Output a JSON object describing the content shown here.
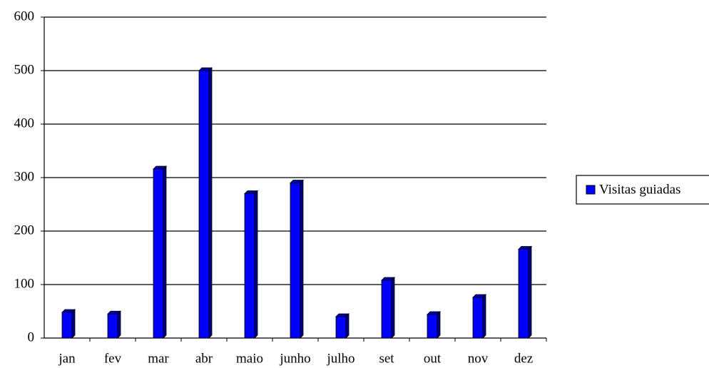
{
  "chart_data": {
    "type": "bar",
    "categories": [
      "jan",
      "fev",
      "mar",
      "abr",
      "maio",
      "junho",
      "julho",
      "set",
      "out",
      "nov",
      "dez"
    ],
    "series": [
      {
        "name": "Visitas guiadas",
        "color": "#0000ff",
        "values": [
          48,
          45,
          316,
          500,
          270,
          290,
          40,
          108,
          44,
          76,
          166
        ]
      }
    ],
    "ylim": [
      0,
      600
    ],
    "yticks": [
      0,
      100,
      200,
      300,
      400,
      500,
      600
    ],
    "grid": true,
    "legend": "right"
  }
}
